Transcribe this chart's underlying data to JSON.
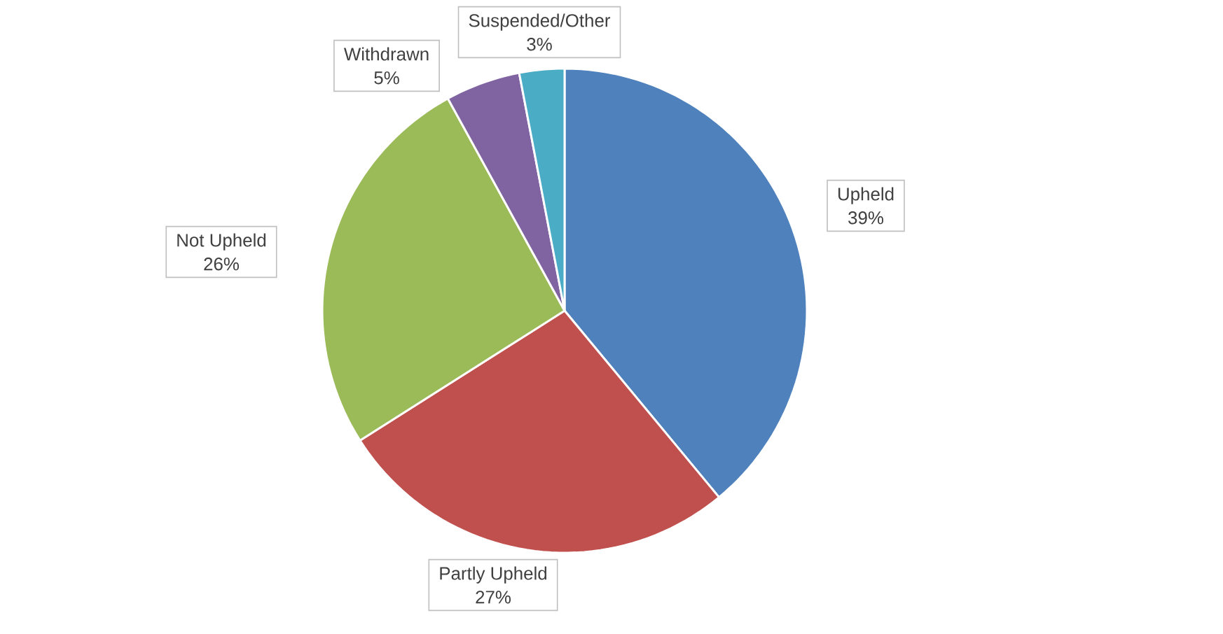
{
  "chart_data": {
    "type": "pie",
    "categories": [
      "Upheld",
      "Partly Upheld",
      "Not Upheld",
      "Withdrawn",
      "Suspended/Other"
    ],
    "values": [
      39,
      27,
      26,
      5,
      3
    ],
    "value_labels": [
      "39%",
      "27%",
      "26%",
      "5%",
      "3%"
    ],
    "colors": [
      "#4f81bd",
      "#c0504d",
      "#9bbb59",
      "#8064a2",
      "#4bacc6"
    ]
  }
}
